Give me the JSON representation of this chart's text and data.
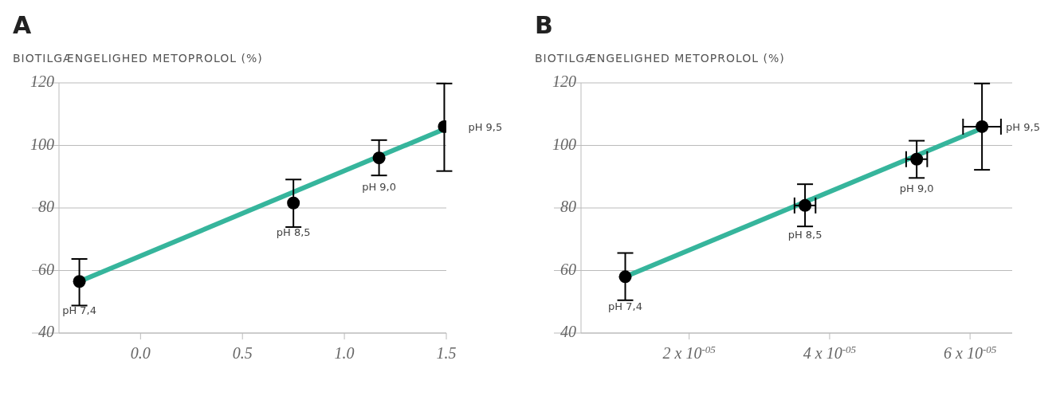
{
  "chart_data": [
    {
      "type": "scatter",
      "title": "A",
      "ylabel": "BIOTILGÆNGELIGHED METOPROLOL (%)",
      "xlim": [
        -0.4,
        1.5
      ],
      "xticks": [
        {
          "value": 0,
          "label": "0.0"
        },
        {
          "value": 0.5,
          "label": "0.5"
        },
        {
          "value": 1,
          "label": "1.0"
        },
        {
          "value": 1.5,
          "label": "1.5"
        }
      ],
      "ylim": [
        40,
        120
      ],
      "yticks": [
        40,
        60,
        80,
        100,
        120
      ],
      "grid": "y",
      "legend": false,
      "series": [
        {
          "type": "line",
          "color": "#36b59c",
          "x": [
            -0.3,
            1.5
          ],
          "values": [
            56.5,
            105.5
          ]
        },
        {
          "type": "scatter",
          "color": "#000000",
          "marker": "circle",
          "x": [
            -0.3,
            0.75,
            1.17,
            1.49
          ],
          "values": [
            56.5,
            81.6,
            96.0,
            106.0
          ],
          "errors": [
            [
              48.8,
              63.7
            ],
            [
              73.9,
              89.1
            ],
            [
              90.4,
              101.7
            ],
            [
              91.8,
              119.8
            ]
          ]
        }
      ],
      "annotations": [
        {
          "text": "pH 7,4",
          "x": -0.3,
          "y": 56.5
        },
        {
          "text": "pH 8,5",
          "x": 0.75,
          "y": 81.6
        },
        {
          "text": "pH 9,0",
          "x": 1.17,
          "y": 96.0
        },
        {
          "text": "pH 9,5",
          "x": 1.49,
          "y": 106.0
        }
      ]
    },
    {
      "type": "scatter",
      "title": "B",
      "ylabel": "BIOTILGÆNGELIGHED METOPROLOL (%)",
      "xlim": [
        4.6e-06,
        6.6e-05
      ],
      "xticks": [
        {
          "value": 2e-05,
          "label": "2 x 10$^{-05}$"
        },
        {
          "value": 4e-05,
          "label": "4 x 10$^{-05}$"
        },
        {
          "value": 6e-05,
          "label": "6 x 10$^{-05}$"
        }
      ],
      "ylim": [
        40,
        120
      ],
      "yticks": [
        40,
        60,
        80,
        100,
        120
      ],
      "grid": "y",
      "legend": false,
      "series": [
        {
          "type": "line",
          "color": "#36b59c",
          "x": [
            1.09e-05,
            6.17e-05
          ],
          "values": [
            58.0,
            105.5
          ]
        },
        {
          "type": "scatter",
          "color": "#000000",
          "marker": "circle",
          "x": [
            1.09e-05,
            3.65e-05,
            5.24e-05,
            6.17e-05
          ],
          "values": [
            58.0,
            80.8,
            95.6,
            106.0
          ],
          "errors": [
            [
              50.5,
              65.6
            ],
            [
              74.1,
              87.6
            ],
            [
              89.6,
              101.5
            ],
            [
              92.2,
              119.8
            ]
          ],
          "xerrors": [
            null,
            1.5e-06,
            1.5e-06,
            2.7e-06
          ]
        }
      ],
      "annotations": [
        {
          "text": "pH 7,4",
          "x": 1.09e-05,
          "y": 58.0
        },
        {
          "text": "pH 8,5",
          "x": 3.65e-05,
          "y": 80.8
        },
        {
          "text": "pH 9,0",
          "x": 5.24e-05,
          "y": 95.6
        },
        {
          "text": "pH 9,5",
          "x": 6.17e-05,
          "y": 106.0
        }
      ]
    }
  ]
}
